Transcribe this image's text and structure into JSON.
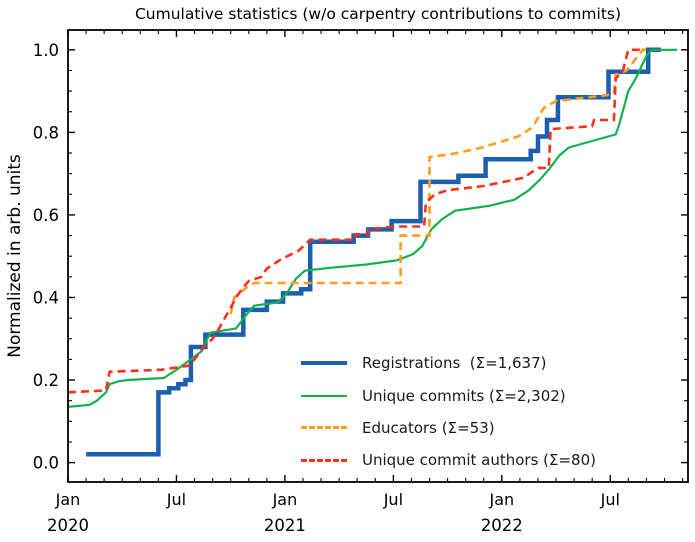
{
  "chart_data": {
    "type": "line",
    "title": "Cumulative statistics (w/o carpentry contributions to commits)",
    "xlabel": "",
    "ylabel": "Normalized in arb. units",
    "x_unit": "months since Jan 2020",
    "xlim": [
      0,
      34.3
    ],
    "ylim": [
      -0.047,
      1.048
    ],
    "grid": false,
    "tick_direction": "in",
    "ticks_on_all_spines": true,
    "legend_position": "lower right",
    "legend_frame": false,
    "x_major_ticks": [
      {
        "m": 0,
        "month": "Jan",
        "year": "2020"
      },
      {
        "m": 6,
        "month": "Jul",
        "year": ""
      },
      {
        "m": 12,
        "month": "Jan",
        "year": "2021"
      },
      {
        "m": 18,
        "month": "Jul",
        "year": ""
      },
      {
        "m": 24,
        "month": "Jan",
        "year": "2022"
      },
      {
        "m": 30,
        "month": "Jul",
        "year": ""
      }
    ],
    "x_minor_every": 1,
    "y_major_ticks": [
      "0.0",
      "0.2",
      "0.4",
      "0.6",
      "0.8",
      "1.0"
    ],
    "y_minor_every": 0.05,
    "series": [
      {
        "name": "Registrations",
        "legend_label": "Registrations  (Σ=1,637)",
        "total": 1637,
        "color": "#1b5fae",
        "style": "solid",
        "width": 4.5,
        "points": [
          [
            1.0,
            0.02
          ],
          [
            5.0,
            0.02
          ],
          [
            5.0,
            0.17
          ],
          [
            5.6,
            0.17
          ],
          [
            5.6,
            0.18
          ],
          [
            6.1,
            0.18
          ],
          [
            6.1,
            0.19
          ],
          [
            6.5,
            0.19
          ],
          [
            6.5,
            0.2
          ],
          [
            6.8,
            0.2
          ],
          [
            6.8,
            0.28
          ],
          [
            7.6,
            0.28
          ],
          [
            7.6,
            0.31
          ],
          [
            9.7,
            0.31
          ],
          [
            9.7,
            0.37
          ],
          [
            11.0,
            0.37
          ],
          [
            11.0,
            0.39
          ],
          [
            11.9,
            0.39
          ],
          [
            11.9,
            0.41
          ],
          [
            12.9,
            0.41
          ],
          [
            12.9,
            0.42
          ],
          [
            13.4,
            0.42
          ],
          [
            13.4,
            0.535
          ],
          [
            15.8,
            0.535
          ],
          [
            15.8,
            0.55
          ],
          [
            16.6,
            0.55
          ],
          [
            16.6,
            0.565
          ],
          [
            17.9,
            0.565
          ],
          [
            17.9,
            0.585
          ],
          [
            19.5,
            0.585
          ],
          [
            19.5,
            0.68
          ],
          [
            21.6,
            0.68
          ],
          [
            21.6,
            0.695
          ],
          [
            23.1,
            0.695
          ],
          [
            23.1,
            0.735
          ],
          [
            25.6,
            0.735
          ],
          [
            25.6,
            0.755
          ],
          [
            26.0,
            0.755
          ],
          [
            26.0,
            0.79
          ],
          [
            26.5,
            0.79
          ],
          [
            26.5,
            0.83
          ],
          [
            27.1,
            0.83
          ],
          [
            27.1,
            0.885
          ],
          [
            29.9,
            0.885
          ],
          [
            29.9,
            0.947
          ],
          [
            32.1,
            0.947
          ],
          [
            32.1,
            1.0
          ],
          [
            32.8,
            1.0
          ]
        ]
      },
      {
        "name": "Unique commits",
        "legend_label": "Unique commits (Σ=2,302)",
        "total": 2302,
        "color": "#12b14e",
        "style": "solid",
        "width": 2.2,
        "points": [
          [
            0,
            0.135
          ],
          [
            1.2,
            0.14
          ],
          [
            1.6,
            0.15
          ],
          [
            2.1,
            0.17
          ],
          [
            2.3,
            0.19
          ],
          [
            2.8,
            0.197
          ],
          [
            3.3,
            0.2
          ],
          [
            5.3,
            0.205
          ],
          [
            6.0,
            0.225
          ],
          [
            6.8,
            0.25
          ],
          [
            7.4,
            0.27
          ],
          [
            7.7,
            0.3
          ],
          [
            7.9,
            0.315
          ],
          [
            9.3,
            0.325
          ],
          [
            9.9,
            0.36
          ],
          [
            10.3,
            0.38
          ],
          [
            11.6,
            0.388
          ],
          [
            12.1,
            0.41
          ],
          [
            12.6,
            0.445
          ],
          [
            13.1,
            0.465
          ],
          [
            14.5,
            0.472
          ],
          [
            16.5,
            0.48
          ],
          [
            18.2,
            0.49
          ],
          [
            19.1,
            0.505
          ],
          [
            19.6,
            0.525
          ],
          [
            20.1,
            0.565
          ],
          [
            20.7,
            0.59
          ],
          [
            21.4,
            0.61
          ],
          [
            23.3,
            0.622
          ],
          [
            24.7,
            0.637
          ],
          [
            25.5,
            0.66
          ],
          [
            26.1,
            0.685
          ],
          [
            26.6,
            0.71
          ],
          [
            27.2,
            0.745
          ],
          [
            27.7,
            0.763
          ],
          [
            28.9,
            0.778
          ],
          [
            30.3,
            0.795
          ],
          [
            30.5,
            0.82
          ],
          [
            31.0,
            0.9
          ],
          [
            31.4,
            0.93
          ],
          [
            32.0,
            0.985
          ],
          [
            32.3,
            1.0
          ],
          [
            33.7,
            1.0
          ]
        ]
      },
      {
        "name": "Educators",
        "legend_label": "Educators (Σ=53)",
        "total": 53,
        "color": "#ff9d1c",
        "style": "dashed",
        "width": 2.6,
        "points": [
          [
            9.0,
            0.36
          ],
          [
            9.2,
            0.4
          ],
          [
            9.9,
            0.425
          ],
          [
            10.3,
            0.435
          ],
          [
            18.4,
            0.435
          ],
          [
            18.4,
            0.55
          ],
          [
            20.0,
            0.55
          ],
          [
            20.0,
            0.74
          ],
          [
            21.3,
            0.748
          ],
          [
            22.9,
            0.763
          ],
          [
            24.9,
            0.79
          ],
          [
            25.7,
            0.812
          ],
          [
            26.3,
            0.858
          ],
          [
            27.0,
            0.876
          ],
          [
            27.6,
            0.879
          ],
          [
            29.8,
            0.89
          ],
          [
            30.2,
            0.895
          ],
          [
            30.3,
            0.94
          ],
          [
            30.9,
            0.95
          ],
          [
            31.8,
            1.0
          ],
          [
            32.2,
            1.0
          ]
        ]
      },
      {
        "name": "Unique commit authors",
        "legend_label": "Unique commit authors (Σ=80)",
        "total": 80,
        "color": "#f8311a",
        "style": "dashed",
        "width": 2.6,
        "points": [
          [
            0,
            0.17
          ],
          [
            2.1,
            0.175
          ],
          [
            2.3,
            0.22
          ],
          [
            5.2,
            0.225
          ],
          [
            6.7,
            0.235
          ],
          [
            7.0,
            0.25
          ],
          [
            7.5,
            0.28
          ],
          [
            8.0,
            0.3
          ],
          [
            8.3,
            0.32
          ],
          [
            8.6,
            0.345
          ],
          [
            9.0,
            0.375
          ],
          [
            9.3,
            0.4
          ],
          [
            9.7,
            0.425
          ],
          [
            10.0,
            0.44
          ],
          [
            10.7,
            0.45
          ],
          [
            11.0,
            0.47
          ],
          [
            11.7,
            0.49
          ],
          [
            12.8,
            0.515
          ],
          [
            13.4,
            0.54
          ],
          [
            15.9,
            0.54
          ],
          [
            15.9,
            0.553
          ],
          [
            16.6,
            0.553
          ],
          [
            16.6,
            0.565
          ],
          [
            18.0,
            0.572
          ],
          [
            19.7,
            0.572
          ],
          [
            19.8,
            0.63
          ],
          [
            20.3,
            0.65
          ],
          [
            21.0,
            0.66
          ],
          [
            23.0,
            0.67
          ],
          [
            25.2,
            0.69
          ],
          [
            26.0,
            0.714
          ],
          [
            26.6,
            0.714
          ],
          [
            26.7,
            0.808
          ],
          [
            29.0,
            0.815
          ],
          [
            29.1,
            0.83
          ],
          [
            30.2,
            0.83
          ],
          [
            30.3,
            0.93
          ],
          [
            30.7,
            0.95
          ],
          [
            31.0,
            1.0
          ],
          [
            31.7,
            1.0
          ]
        ]
      }
    ]
  }
}
